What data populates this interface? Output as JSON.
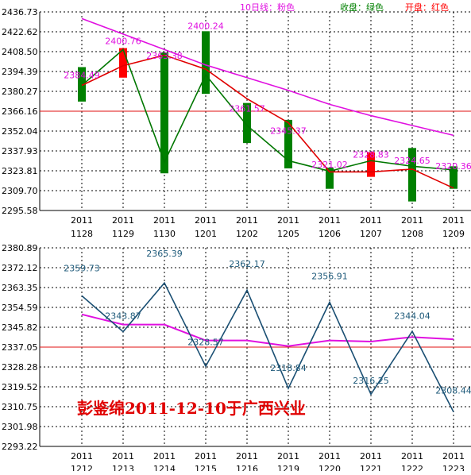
{
  "chart_data": [
    {
      "type": "candlestick",
      "legend": [
        {
          "label": "10日线：粉色",
          "color": "#e010e0"
        },
        {
          "label": "收盘：绿色",
          "color": "#008000"
        },
        {
          "label": "开盘：红色",
          "color": "#ff0000"
        }
      ],
      "y_ticks": [
        "2436.73",
        "2422.62",
        "2408.50",
        "2394.39",
        "2380.27",
        "2366.16",
        "2352.04",
        "2337.93",
        "2323.81",
        "2309.70",
        "2295.58"
      ],
      "ylim": [
        2295.58,
        2436.73
      ],
      "reference_line": 2366.16,
      "categories": [
        {
          "year": "2011",
          "md": "1128"
        },
        {
          "year": "2011",
          "md": "1129"
        },
        {
          "year": "2011",
          "md": "1130"
        },
        {
          "year": "2011",
          "md": "1201"
        },
        {
          "year": "2011",
          "md": "1202"
        },
        {
          "year": "2011",
          "md": "1205"
        },
        {
          "year": "2011",
          "md": "1206"
        },
        {
          "year": "2011",
          "md": "1207"
        },
        {
          "year": "2011",
          "md": "1208"
        },
        {
          "year": "2011",
          "md": "1209"
        }
      ],
      "series": [
        {
          "name": "收盘",
          "values": [
            2384.5,
            2410.0,
            2330.0,
            2392.0,
            2356.0,
            2331.0,
            2323.5,
            2331.0,
            2327.0,
            2324.5
          ]
        },
        {
          "name": "开盘",
          "values": [
            2384.5,
            2398.5,
            2406.0,
            2396.0,
            2375.0,
            2358.0,
            2323.0,
            2323.0,
            2325.0,
            2311.5
          ]
        },
        {
          "name": "10日线",
          "values": [
            2432.0,
            2421.0,
            2410.0,
            2399.0,
            2390.0,
            2381.0,
            2371.0,
            2363.0,
            2356.0,
            2349.0
          ]
        }
      ],
      "candles": [
        {
          "low": 2373.0,
          "high": 2397.5,
          "color": "green"
        },
        {
          "low": 2390.0,
          "high": 2411.0,
          "color": "red"
        },
        {
          "low": 2322.0,
          "high": 2408.0,
          "color": "green"
        },
        {
          "low": 2378.5,
          "high": 2423.0,
          "color": "green"
        },
        {
          "low": 2343.5,
          "high": 2372.0,
          "color": "green"
        },
        {
          "low": 2325.5,
          "high": 2360.0,
          "color": "green"
        },
        {
          "low": 2311.0,
          "high": 2326.0,
          "color": "green"
        },
        {
          "low": 2319.5,
          "high": 2337.0,
          "color": "red"
        },
        {
          "low": 2302.0,
          "high": 2340.0,
          "color": "green"
        },
        {
          "low": 2311.0,
          "high": 2327.0,
          "color": "green"
        }
      ],
      "value_labels": [
        "2384.49",
        "2400.76",
        "2363.38",
        "2400.24",
        "2361.57",
        "2345.37",
        "2321.02",
        "2328.83",
        "2324.65",
        "2320.36"
      ],
      "value_label_at": [
        2389.5,
        2414.0,
        2403.5,
        2424.5,
        2366.0,
        2350.0,
        2326.0,
        2333.0,
        2329.0,
        2325.0
      ]
    },
    {
      "type": "line",
      "y_ticks": [
        "2380.89",
        "2372.12",
        "2363.35",
        "2354.59",
        "2345.82",
        "2337.05",
        "2328.28",
        "2319.52",
        "2310.75",
        "2301.98",
        "2293.22"
      ],
      "ylim": [
        2293.22,
        2380.89
      ],
      "reference_line": 2337.05,
      "categories": [
        {
          "year": "2011",
          "md": "1212"
        },
        {
          "year": "2011",
          "md": "1213"
        },
        {
          "year": "2011",
          "md": "1214"
        },
        {
          "year": "2011",
          "md": "1215"
        },
        {
          "year": "2011",
          "md": "1216"
        },
        {
          "year": "2011",
          "md": "1219"
        },
        {
          "year": "2011",
          "md": "1220"
        },
        {
          "year": "2011",
          "md": "1221"
        },
        {
          "year": "2011",
          "md": "1222"
        },
        {
          "year": "2011",
          "md": "1223"
        }
      ],
      "series": [
        {
          "name": "main",
          "values": [
            2359.73,
            2343.87,
            2365.39,
            2328.57,
            2362.17,
            2318.84,
            2356.91,
            2316.25,
            2344.04,
            2308.44
          ]
        },
        {
          "name": "avg",
          "values": [
            2351.5,
            2347.0,
            2347.0,
            2340.0,
            2340.0,
            2337.5,
            2340.0,
            2339.5,
            2341.5,
            2340.5
          ]
        }
      ],
      "value_labels": [
        "2359.73",
        "2343.87",
        "2365.39",
        "2328.57",
        "2362.17",
        "2318.84",
        "2356.91",
        "2316.25",
        "2344.04",
        "2308.44"
      ],
      "value_label_at": [
        2370.5,
        2349.5,
        2377.0,
        2338.0,
        2372.5,
        2326.5,
        2367.0,
        2321.0,
        2349.5,
        2316.5
      ]
    }
  ],
  "annotation": "彭鉴绵2011-12-10于广西兴业"
}
